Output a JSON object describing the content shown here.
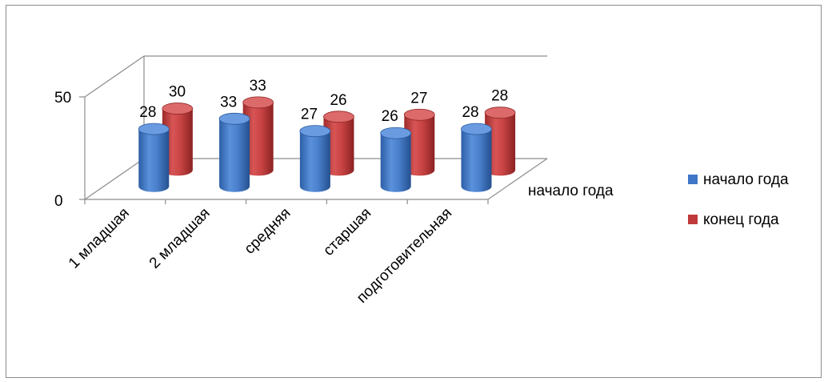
{
  "chart_data": {
    "type": "bar",
    "subtype": "3d-cylinder",
    "categories": [
      "1 младшая",
      "2 младшая",
      "средняя",
      "старшая",
      "подготовительная"
    ],
    "series": [
      {
        "name": "начало года",
        "color": "#3f76c7",
        "values": [
          28,
          33,
          27,
          26,
          28
        ]
      },
      {
        "name": "конец года",
        "color": "#c0393a",
        "values": [
          30,
          33,
          26,
          27,
          28
        ]
      }
    ],
    "depth_axis_label": "начало года",
    "y_ticks": [
      "0",
      "50"
    ],
    "ylim": [
      0,
      50
    ],
    "grid": false,
    "legend_position": "right",
    "data_labels": true
  }
}
